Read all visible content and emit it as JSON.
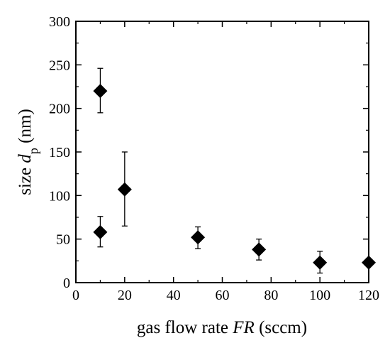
{
  "chart_data": {
    "type": "scatter",
    "title": "",
    "xlabel": {
      "prefix": "gas flow rate ",
      "italic": "FR",
      "suffix": " (sccm)"
    },
    "ylabel": {
      "prefix": "size ",
      "italic": "d",
      "subscript": "p",
      "suffix": " (nm)"
    },
    "xlim": [
      0,
      120
    ],
    "ylim": [
      0,
      300
    ],
    "xticks": [
      0,
      20,
      40,
      60,
      80,
      100,
      120
    ],
    "yticks": [
      0,
      50,
      100,
      150,
      200,
      250,
      300
    ],
    "grid": false,
    "marker": "diamond",
    "marker_color": "#000000",
    "points": [
      {
        "x": 10,
        "y": 220,
        "yerr_low": 195,
        "yerr_high": 246
      },
      {
        "x": 10,
        "y": 58,
        "yerr_low": 41,
        "yerr_high": 76
      },
      {
        "x": 20,
        "y": 107,
        "yerr_low": 65,
        "yerr_high": 150
      },
      {
        "x": 50,
        "y": 52,
        "yerr_low": 39,
        "yerr_high": 64
      },
      {
        "x": 75,
        "y": 38,
        "yerr_low": 26,
        "yerr_high": 50
      },
      {
        "x": 100,
        "y": 23,
        "yerr_low": 11,
        "yerr_high": 36
      },
      {
        "x": 120,
        "y": 23,
        "yerr_low": 23,
        "yerr_high": 23
      }
    ]
  }
}
